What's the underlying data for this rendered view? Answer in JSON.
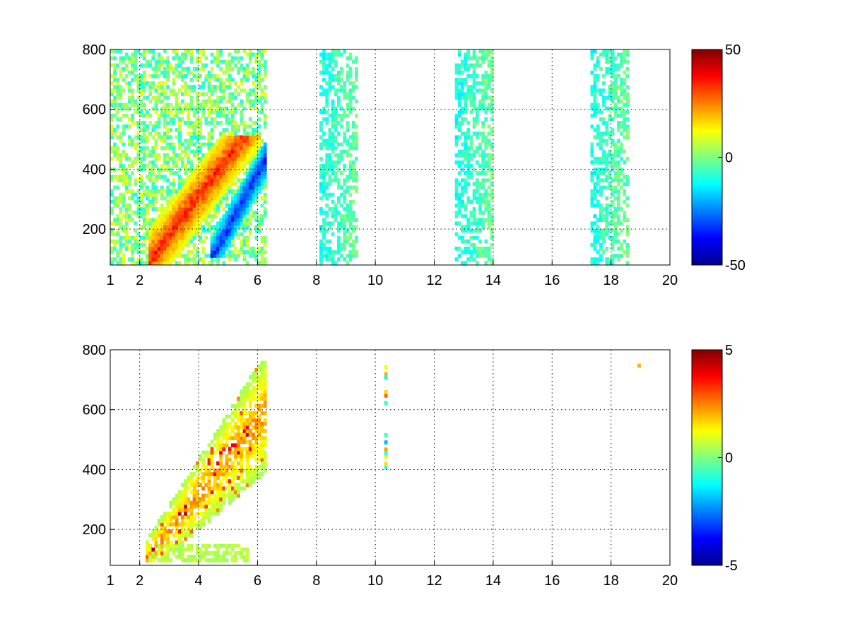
{
  "chart_data": [
    {
      "type": "heatmap",
      "title": "",
      "xlabel": "",
      "ylabel": "",
      "x_ticks": [
        1,
        2,
        4,
        6,
        8,
        10,
        12,
        14,
        16,
        18,
        20
      ],
      "y_ticks": [
        200,
        400,
        600,
        800
      ],
      "xlim": [
        1,
        20
      ],
      "ylim": [
        80,
        800
      ],
      "grid": true,
      "colormap": "jet",
      "colorbar": {
        "min": -50,
        "max": 50,
        "ticks": [
          50,
          0,
          -50
        ],
        "labels": [
          "50",
          "0",
          "-50"
        ]
      },
      "colors": {
        "min": "#00008f",
        "mid": "#80ff80",
        "max": "#800000"
      },
      "features": [
        {
          "description": "positive ridge",
          "x_range": [
            2.3,
            6.0
          ],
          "y_range": [
            80,
            500
          ],
          "value": 40
        },
        {
          "description": "negative ridge",
          "x_range": [
            4.3,
            6.2
          ],
          "y_range": [
            100,
            480
          ],
          "value": -40
        },
        {
          "description": "vertical banding",
          "x_range": [
            6.2,
            19.8
          ],
          "y_range": [
            80,
            800
          ],
          "value_range": [
            -15,
            15
          ]
        }
      ]
    },
    {
      "type": "heatmap",
      "title": "",
      "xlabel": "",
      "ylabel": "",
      "x_ticks": [
        1,
        2,
        4,
        6,
        8,
        10,
        12,
        14,
        16,
        18,
        20
      ],
      "y_ticks": [
        200,
        400,
        600,
        800
      ],
      "xlim": [
        1,
        20
      ],
      "ylim": [
        80,
        800
      ],
      "grid": true,
      "colormap": "jet",
      "colorbar": {
        "min": -5,
        "max": 5,
        "ticks": [
          5,
          0,
          -5
        ],
        "labels": [
          "5",
          "0",
          "-5"
        ]
      },
      "colors": {
        "min": "#00008f",
        "mid": "#80ff80",
        "max": "#800000"
      },
      "features": [
        {
          "description": "main structure",
          "x_range": [
            2.2,
            6.2
          ],
          "y_range": [
            90,
            760
          ],
          "value_range": [
            -2,
            3
          ]
        },
        {
          "description": "isolated column",
          "x": 10.3,
          "y_range": [
            400,
            770
          ],
          "value_range": [
            -2,
            3
          ]
        },
        {
          "description": "isolated point",
          "x": 18.9,
          "y": 740,
          "value": 2
        }
      ]
    }
  ]
}
